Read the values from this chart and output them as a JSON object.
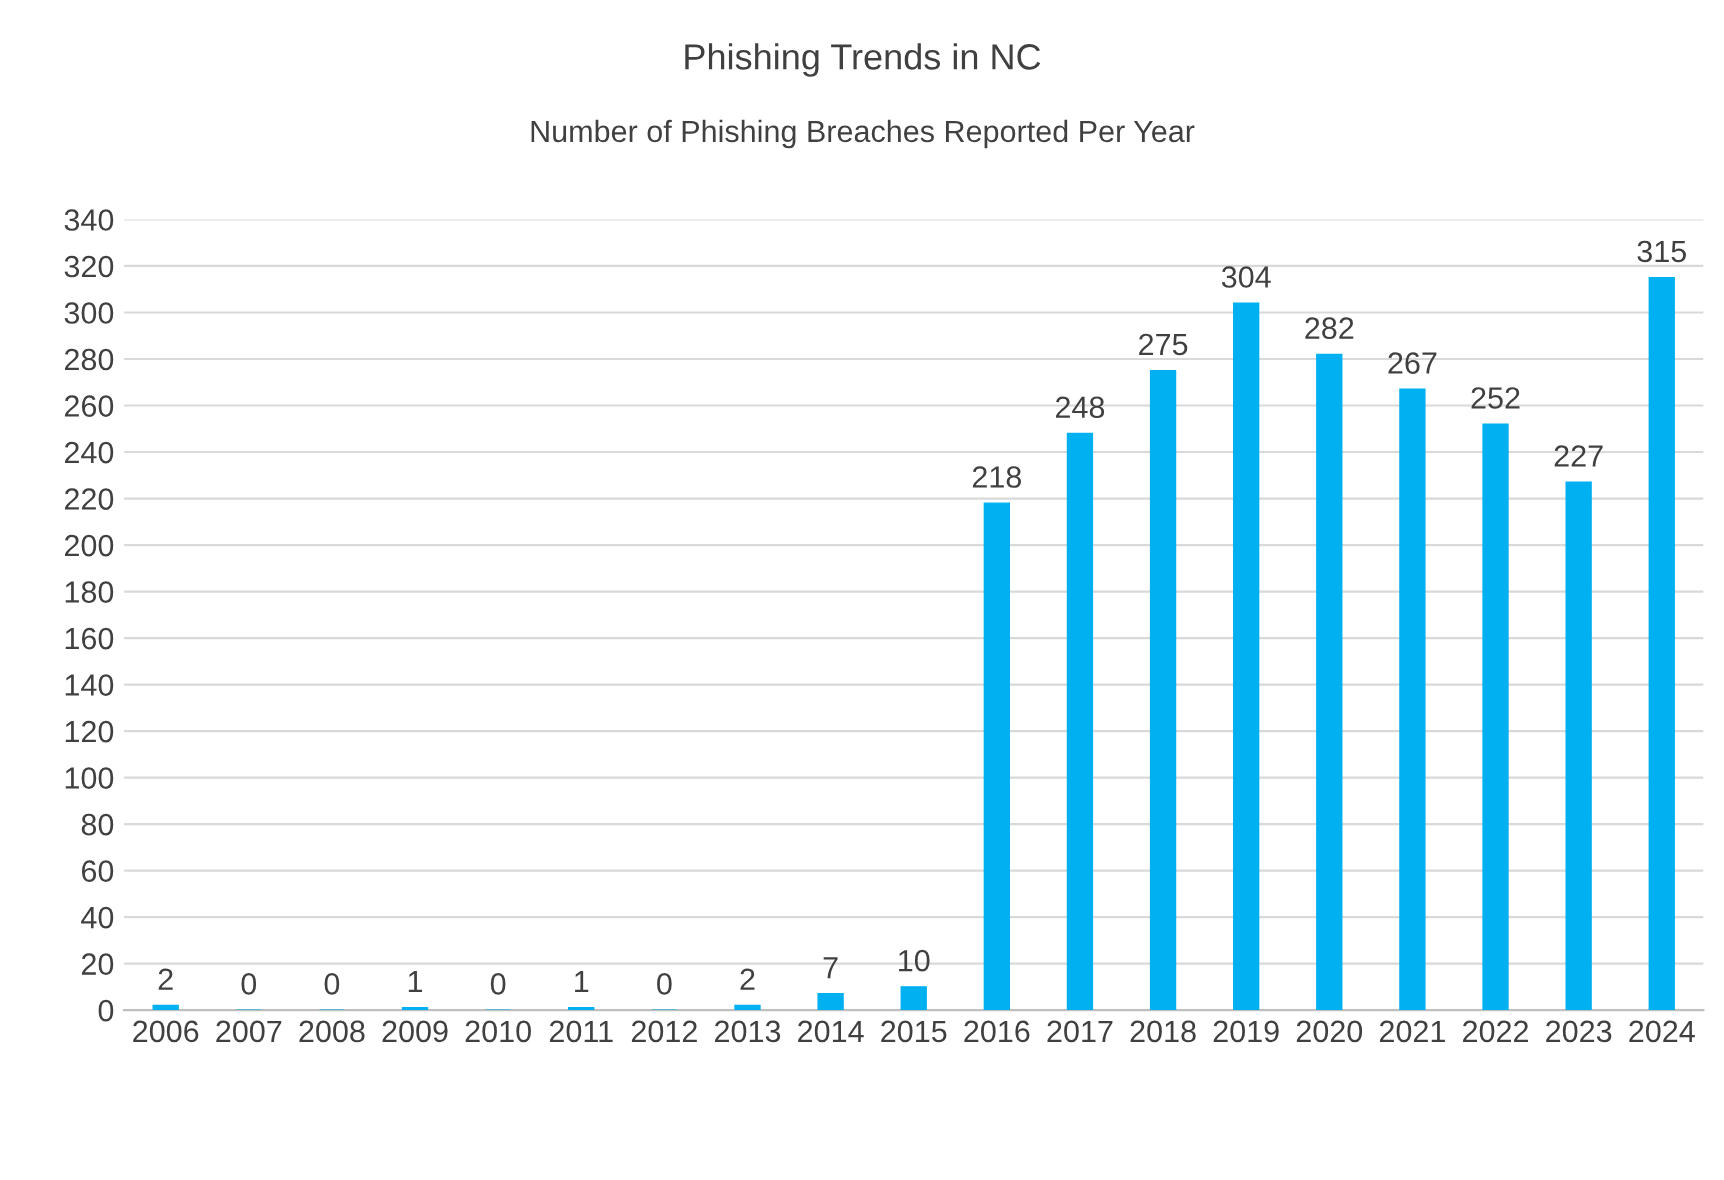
{
  "chart_data": {
    "type": "bar",
    "title": "Phishing Trends in NC",
    "subtitle": "Number of Phishing Breaches Reported Per Year",
    "categories": [
      "2006",
      "2007",
      "2008",
      "2009",
      "2010",
      "2011",
      "2012",
      "2013",
      "2014",
      "2015",
      "2016",
      "2017",
      "2018",
      "2019",
      "2020",
      "2021",
      "2022",
      "2023",
      "2024"
    ],
    "values": [
      2,
      0,
      0,
      1,
      0,
      1,
      0,
      2,
      7,
      10,
      218,
      248,
      275,
      304,
      282,
      267,
      252,
      227,
      315
    ],
    "color": "#00b0f0",
    "ylim": [
      0,
      340
    ],
    "yticks": [
      0,
      20,
      40,
      60,
      80,
      100,
      120,
      140,
      160,
      180,
      200,
      220,
      240,
      260,
      280,
      300,
      320,
      340
    ],
    "grid": "y",
    "data_labels": true,
    "legend": false
  }
}
